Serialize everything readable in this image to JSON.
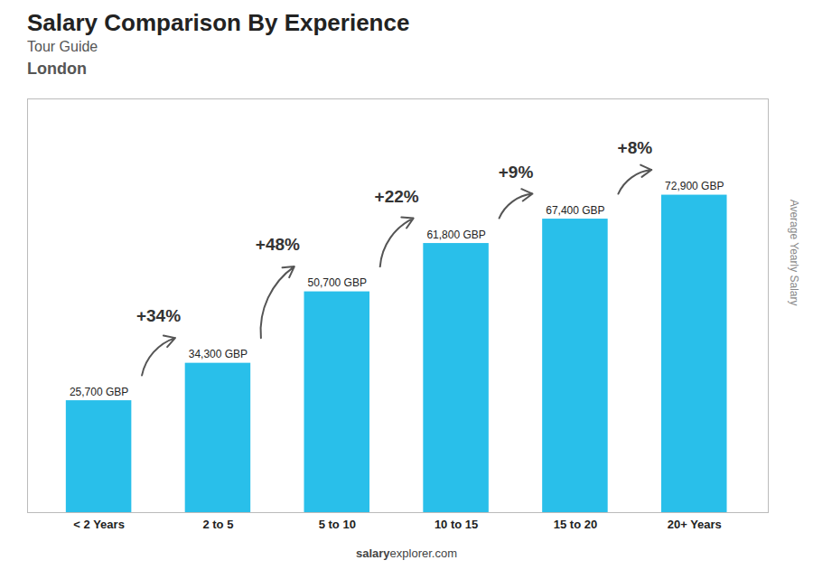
{
  "chart_data": {
    "type": "bar",
    "title": "Salary Comparison By Experience",
    "subtitle": [
      "Tour Guide",
      "London"
    ],
    "ylabel": "Average Yearly Salary",
    "footer": [
      "salary",
      "explorer.com"
    ],
    "categories": [
      "< 2 Years",
      "2 to 5",
      "5 to 10",
      "10 to 15",
      "15 to 20",
      "20+ Years"
    ],
    "values": [
      25700,
      34300,
      50700,
      61800,
      67400,
      72900
    ],
    "value_labels": [
      "25,700 GBP",
      "34,300 GBP",
      "50,700 GBP",
      "61,800 GBP",
      "67,400 GBP",
      "72,900 GBP"
    ],
    "data_labels": true,
    "annotations": [
      "+34%",
      "+48%",
      "+22%",
      "+9%",
      "+8%"
    ],
    "color": "#29BFEA",
    "ylim": [
      0,
      95000
    ],
    "tick_labels": "x",
    "grid": false
  }
}
